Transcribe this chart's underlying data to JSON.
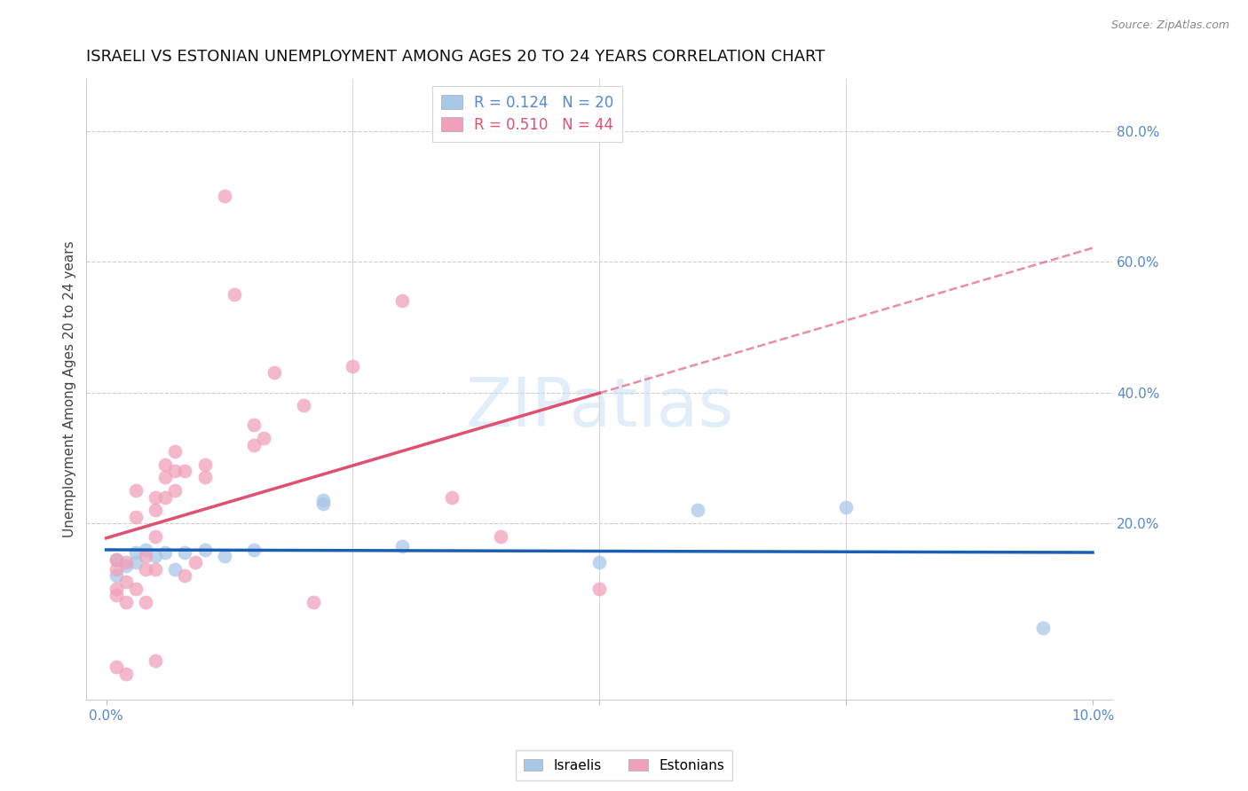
{
  "title": "ISRAELI VS ESTONIAN UNEMPLOYMENT AMONG AGES 20 TO 24 YEARS CORRELATION CHART",
  "source": "Source: ZipAtlas.com",
  "ylabel": "Unemployment Among Ages 20 to 24 years",
  "watermark": "ZIPatlas",
  "xlim": [
    -0.002,
    0.102
  ],
  "ylim": [
    -0.07,
    0.88
  ],
  "yticks": [
    0.0,
    0.2,
    0.4,
    0.6,
    0.8
  ],
  "ytick_labels": [
    "",
    "20.0%",
    "40.0%",
    "60.0%",
    "80.0%"
  ],
  "xticks": [
    0.0,
    0.025,
    0.05,
    0.075,
    0.1
  ],
  "xtick_labels": [
    "0.0%",
    "",
    "",
    "",
    "10.0%"
  ],
  "legend_R_israeli": "R = 0.124",
  "legend_N_israeli": "N = 20",
  "legend_R_estonian": "R = 0.510",
  "legend_N_estonian": "N = 44",
  "israeli_color": "#a8c8e8",
  "estonian_color": "#f0a0b8",
  "trendline_israeli_color": "#1a5fb4",
  "trendline_estonian_color": "#e05070",
  "background_color": "#ffffff",
  "israeli_x": [
    0.001,
    0.001,
    0.002,
    0.003,
    0.003,
    0.004,
    0.005,
    0.006,
    0.007,
    0.008,
    0.01,
    0.012,
    0.015,
    0.022,
    0.022,
    0.03,
    0.05,
    0.06,
    0.075,
    0.095
  ],
  "israeli_y": [
    0.145,
    0.12,
    0.135,
    0.155,
    0.14,
    0.16,
    0.15,
    0.155,
    0.13,
    0.155,
    0.16,
    0.15,
    0.16,
    0.23,
    0.235,
    0.165,
    0.14,
    0.22,
    0.225,
    0.04
  ],
  "estonian_x": [
    0.001,
    0.001,
    0.001,
    0.001,
    0.001,
    0.002,
    0.002,
    0.002,
    0.002,
    0.003,
    0.003,
    0.003,
    0.004,
    0.004,
    0.004,
    0.005,
    0.005,
    0.005,
    0.005,
    0.005,
    0.006,
    0.006,
    0.006,
    0.007,
    0.007,
    0.007,
    0.008,
    0.008,
    0.009,
    0.01,
    0.01,
    0.012,
    0.013,
    0.015,
    0.015,
    0.016,
    0.017,
    0.02,
    0.021,
    0.025,
    0.03,
    0.035,
    0.04,
    0.05
  ],
  "estonian_y": [
    0.145,
    0.13,
    0.1,
    0.09,
    -0.02,
    0.14,
    0.11,
    0.08,
    -0.03,
    0.25,
    0.21,
    0.1,
    0.15,
    0.13,
    0.08,
    0.24,
    0.22,
    0.18,
    0.13,
    -0.01,
    0.29,
    0.27,
    0.24,
    0.31,
    0.28,
    0.25,
    0.28,
    0.12,
    0.14,
    0.29,
    0.27,
    0.7,
    0.55,
    0.35,
    0.32,
    0.33,
    0.43,
    0.38,
    0.08,
    0.44,
    0.54,
    0.24,
    0.18,
    0.1
  ],
  "title_fontsize": 13,
  "axis_label_fontsize": 11,
  "tick_fontsize": 11,
  "legend_fontsize": 12,
  "source_fontsize": 9,
  "watermark_fontsize": 55,
  "watermark_color": "#c5ddf5",
  "watermark_alpha": 0.5
}
